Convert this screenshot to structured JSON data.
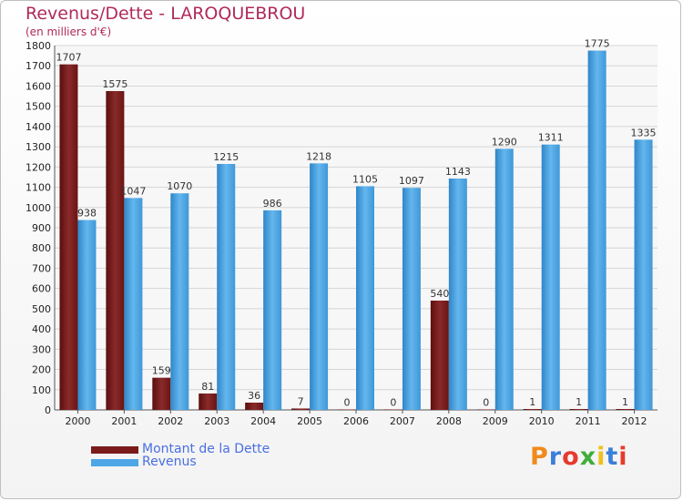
{
  "header": {
    "title": "Revenus/Dette - LAROQUEBROU",
    "subtitle": "(en milliers d'€)"
  },
  "colors": {
    "dette": "#7a1a1a",
    "revenus": "#4ea6e6",
    "axis_text": "#222222",
    "title": "#b02a5b",
    "legend_text": "#4a6fe0"
  },
  "chart_data": {
    "type": "bar",
    "title": "Revenus/Dette - LAROQUEBROU",
    "subtitle": "(en milliers d'€)",
    "xlabel": "",
    "ylabel": "",
    "ylim": [
      0,
      1800
    ],
    "ytick_step": 100,
    "grid": true,
    "legend_position": "bottom-left",
    "categories": [
      "2000",
      "2001",
      "2002",
      "2003",
      "2004",
      "2005",
      "2006",
      "2007",
      "2008",
      "2009",
      "2010",
      "2011",
      "2012"
    ],
    "series": [
      {
        "name": "Montant de la Dette",
        "color": "#7a1a1a",
        "values": [
          1707,
          1575,
          159,
          81,
          36,
          7,
          0,
          0,
          540,
          0,
          1,
          1,
          1
        ]
      },
      {
        "name": "Revenus",
        "color": "#4ea6e6",
        "values": [
          938,
          1047,
          1070,
          1215,
          986,
          1218,
          1105,
          1097,
          1143,
          1290,
          1311,
          1775,
          1335
        ]
      }
    ]
  },
  "legend": {
    "items": [
      {
        "label": "Montant de la Dette",
        "color": "#7a1a1a"
      },
      {
        "label": "Revenus",
        "color": "#4ea6e6"
      }
    ]
  },
  "logo": {
    "text": "Proxiti",
    "letter_colors": [
      "#f08a1c",
      "#3a7fd8",
      "#e63a2e",
      "#3fae3a",
      "#f0c01c",
      "#3a7fd8",
      "#e63a2e"
    ]
  }
}
